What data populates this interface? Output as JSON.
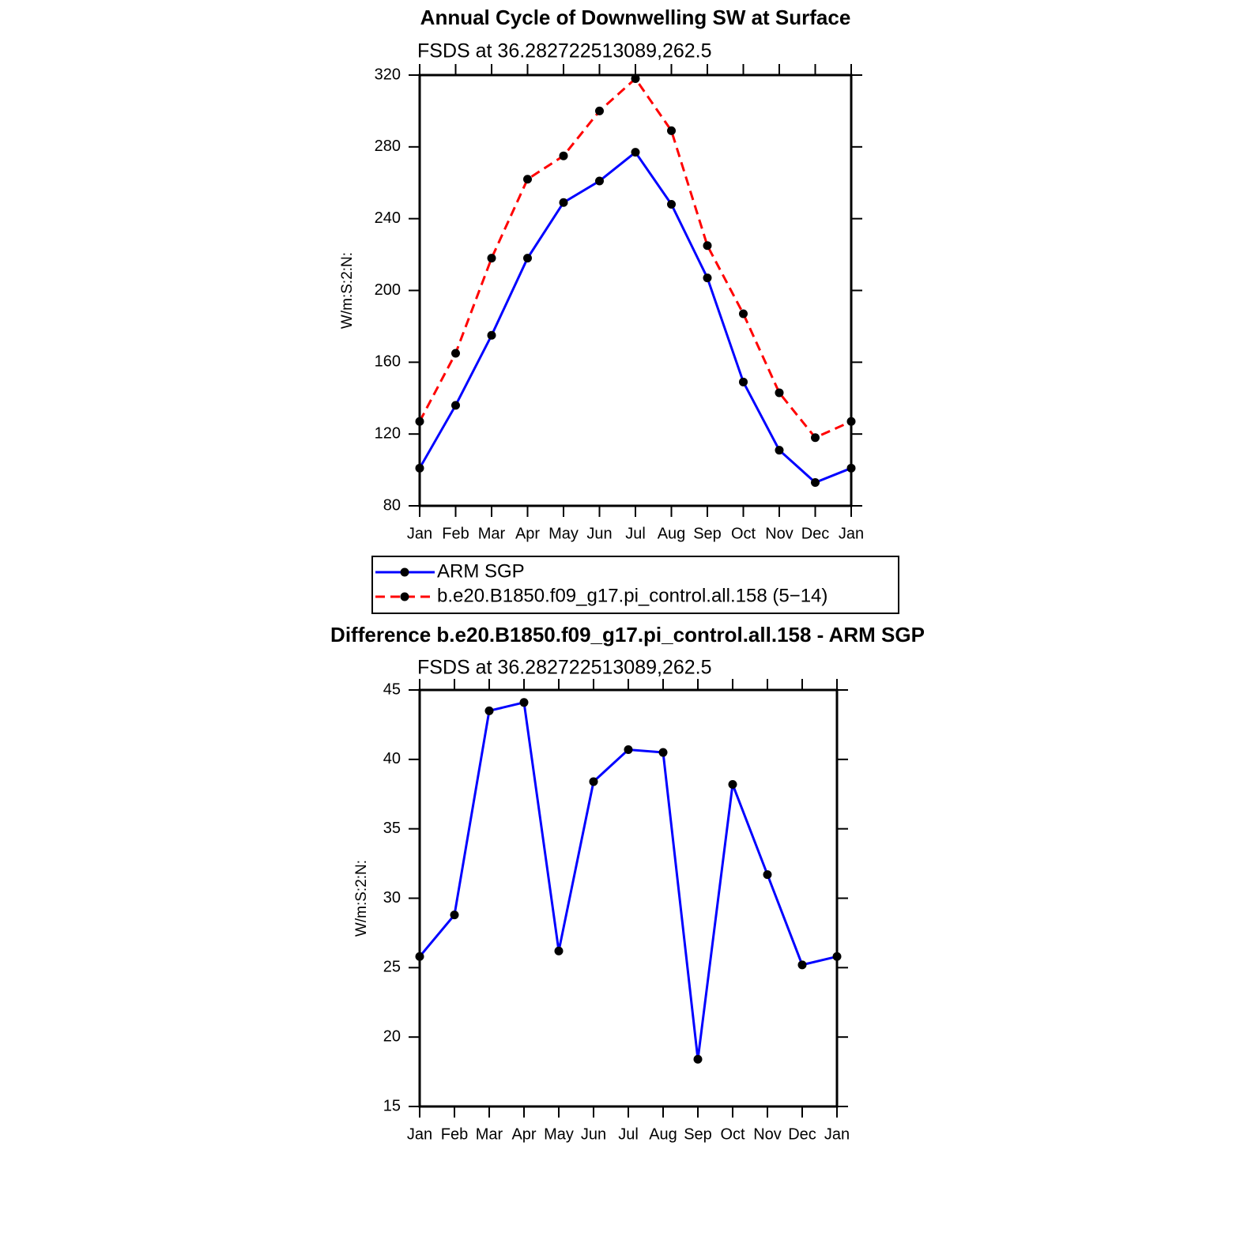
{
  "chart_data": [
    {
      "type": "line",
      "title": "Annual Cycle of Downwelling SW at Surface",
      "subtitle": "FSDS at 36.282722513089,262.5",
      "y_label": "W/m:S:2:N:",
      "categories": [
        "Jan",
        "Feb",
        "Mar",
        "Apr",
        "May",
        "Jun",
        "Jul",
        "Aug",
        "Sep",
        "Oct",
        "Nov",
        "Dec",
        "Jan"
      ],
      "series": [
        {
          "name": "ARM SGP",
          "color": "#0000ff",
          "dash": "solid",
          "marker_color": "#000000",
          "values": [
            101,
            136,
            175,
            218,
            249,
            261,
            277,
            248,
            207,
            149,
            111,
            93,
            101
          ]
        },
        {
          "name": "b.e20.B1850.f09_g17.pi_control.all.158 (5−14)",
          "color": "#ff0000",
          "dash": "dashed",
          "marker_color": "#000000",
          "values": [
            127,
            165,
            218,
            262,
            275,
            300,
            318,
            289,
            225,
            187,
            143,
            118,
            127
          ]
        }
      ],
      "ylim": [
        80,
        320
      ],
      "yticks": [
        80,
        120,
        160,
        200,
        240,
        280,
        320
      ],
      "legend": "below"
    },
    {
      "type": "line",
      "title": "Difference b.e20.B1850.f09_g17.pi_control.all.158 - ARM SGP",
      "subtitle": "FSDS at 36.282722513089,262.5",
      "y_label": "W/m:S:2:N:",
      "categories": [
        "Jan",
        "Feb",
        "Mar",
        "Apr",
        "May",
        "Jun",
        "Jul",
        "Aug",
        "Sep",
        "Oct",
        "Nov",
        "Dec",
        "Jan"
      ],
      "series": [
        {
          "color": "#0000ff",
          "dash": "solid",
          "marker_color": "#000000",
          "values": [
            25.8,
            28.8,
            43.5,
            44.1,
            26.2,
            38.4,
            40.7,
            40.5,
            18.4,
            38.2,
            31.7,
            25.2,
            25.8
          ]
        }
      ],
      "ylim": [
        15,
        45
      ],
      "yticks": [
        15,
        20,
        25,
        30,
        35,
        40,
        45
      ]
    }
  ]
}
